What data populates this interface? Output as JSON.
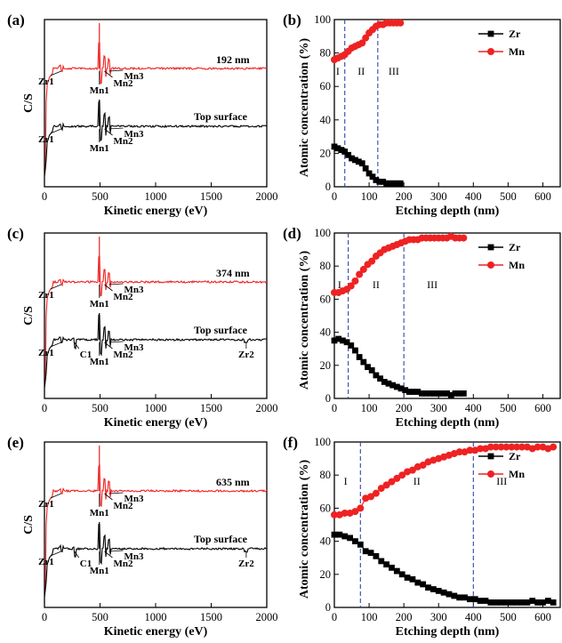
{
  "panels": [
    {
      "letter": "(a)"
    },
    {
      "letter": "(b)"
    },
    {
      "letter": "(c)"
    },
    {
      "letter": "(d)"
    },
    {
      "letter": "(e)"
    },
    {
      "letter": "(f)"
    }
  ],
  "colors": {
    "red": "#ee2222",
    "black": "#000000",
    "divider": "#3344aa"
  },
  "chart_data": [
    {
      "type": "line",
      "panel": "(a)",
      "xlabel": "Kinetic energy (eV)",
      "ylabel": "C/S",
      "xlim": [
        0,
        2000
      ],
      "xticks": [
        "0",
        "500",
        "1000",
        "1500",
        "2000"
      ],
      "series": [
        {
          "name": "192 nm",
          "color": "#ee2222"
        },
        {
          "name": "Top surface",
          "color": "#000000"
        }
      ],
      "curve_labels": [
        "192 nm",
        "Top surface"
      ],
      "peak_labels": [
        {
          "text": "Zr1",
          "series": 0
        },
        {
          "text": "Mn1",
          "series": 0
        },
        {
          "text": "Mn2",
          "series": 0
        },
        {
          "text": "Mn3",
          "series": 0
        },
        {
          "text": "Zr1",
          "series": 1
        },
        {
          "text": "Mn1",
          "series": 1
        },
        {
          "text": "Mn2",
          "series": 1
        },
        {
          "text": "Mn3",
          "series": 1
        }
      ]
    },
    {
      "type": "line",
      "panel": "(b)",
      "xlabel": "Etching depth (nm)",
      "ylabel": "Atomic concentration (%)",
      "xlim": [
        0,
        650
      ],
      "ylim": [
        0,
        100
      ],
      "xticks": [
        "0",
        "100",
        "200",
        "300",
        "400",
        "500",
        "600"
      ],
      "yticks": [
        "0",
        "20",
        "40",
        "60",
        "80",
        "100"
      ],
      "legend": "top-right",
      "regions": [
        "I",
        "II",
        "III"
      ],
      "dividers": [
        30,
        125
      ],
      "series": [
        {
          "name": "Zr",
          "color": "#000000",
          "marker": "square",
          "x": [
            0,
            10,
            20,
            30,
            40,
            50,
            60,
            70,
            80,
            90,
            100,
            110,
            120,
            130,
            140,
            150,
            160,
            170,
            180,
            190
          ],
          "y": [
            24,
            23,
            22,
            21,
            19,
            17,
            16,
            15,
            14,
            11,
            8,
            6,
            4,
            3,
            3,
            2,
            2,
            2,
            2,
            2
          ]
        },
        {
          "name": "Mn",
          "color": "#ee2222",
          "marker": "circle",
          "x": [
            0,
            10,
            20,
            30,
            40,
            50,
            60,
            70,
            80,
            90,
            100,
            110,
            120,
            130,
            140,
            150,
            160,
            170,
            180,
            190
          ],
          "y": [
            76,
            77,
            78,
            79,
            81,
            83,
            84,
            85,
            86,
            89,
            92,
            94,
            96,
            97,
            97,
            98,
            98,
            98,
            98,
            98
          ]
        }
      ]
    },
    {
      "type": "line",
      "panel": "(c)",
      "xlabel": "Kinetic energy (eV)",
      "ylabel": "C/S",
      "xlim": [
        0,
        2000
      ],
      "xticks": [
        "0",
        "500",
        "1000",
        "1500",
        "2000"
      ],
      "series": [
        {
          "name": "374 nm",
          "color": "#ee2222"
        },
        {
          "name": "Top surface",
          "color": "#000000"
        }
      ],
      "curve_labels": [
        "374 nm",
        "Top surface"
      ],
      "peak_labels": [
        {
          "text": "Zr1",
          "series": 0
        },
        {
          "text": "Mn1",
          "series": 0
        },
        {
          "text": "Mn2",
          "series": 0
        },
        {
          "text": "Mn3",
          "series": 0
        },
        {
          "text": "Zr1",
          "series": 1
        },
        {
          "text": "C1",
          "series": 1
        },
        {
          "text": "Mn1",
          "series": 1
        },
        {
          "text": "Mn2",
          "series": 1
        },
        {
          "text": "Mn3",
          "series": 1
        },
        {
          "text": "Zr2",
          "series": 1
        }
      ]
    },
    {
      "type": "line",
      "panel": "(d)",
      "xlabel": "Etching depth (nm)",
      "ylabel": "Atomic concentration (%)",
      "xlim": [
        0,
        650
      ],
      "ylim": [
        0,
        100
      ],
      "xticks": [
        "0",
        "100",
        "200",
        "300",
        "400",
        "500",
        "600"
      ],
      "yticks": [
        "0",
        "20",
        "40",
        "60",
        "80",
        "100"
      ],
      "legend": "top-right",
      "regions": [
        "I",
        "II",
        "III"
      ],
      "dividers": [
        40,
        200
      ],
      "series": [
        {
          "name": "Zr",
          "color": "#000000",
          "marker": "square",
          "x": [
            0,
            12,
            24,
            36,
            48,
            60,
            72,
            84,
            96,
            108,
            120,
            132,
            144,
            156,
            168,
            180,
            192,
            204,
            216,
            228,
            240,
            252,
            264,
            276,
            288,
            300,
            312,
            324,
            336,
            348,
            360,
            372
          ],
          "y": [
            35,
            36,
            35,
            34,
            32,
            29,
            25,
            22,
            19,
            17,
            14,
            12,
            10,
            9,
            8,
            7,
            6,
            5,
            4,
            4,
            4,
            3,
            3,
            3,
            3,
            3,
            3,
            3,
            2,
            3,
            3,
            3
          ]
        },
        {
          "name": "Mn",
          "color": "#ee2222",
          "marker": "circle",
          "x": [
            0,
            12,
            24,
            36,
            48,
            60,
            72,
            84,
            96,
            108,
            120,
            132,
            144,
            156,
            168,
            180,
            192,
            204,
            216,
            228,
            240,
            252,
            264,
            276,
            288,
            300,
            312,
            324,
            336,
            348,
            360,
            372
          ],
          "y": [
            64,
            64,
            65,
            66,
            68,
            71,
            75,
            78,
            81,
            83,
            86,
            88,
            90,
            91,
            92,
            93,
            94,
            95,
            96,
            96,
            96,
            97,
            97,
            97,
            97,
            97,
            97,
            97,
            98,
            97,
            97,
            97
          ]
        }
      ]
    },
    {
      "type": "line",
      "panel": "(e)",
      "xlabel": "Kinetic energy (eV)",
      "ylabel": "C/S",
      "xlim": [
        0,
        2000
      ],
      "xticks": [
        "0",
        "500",
        "1000",
        "1500",
        "2000"
      ],
      "series": [
        {
          "name": "635 nm",
          "color": "#ee2222"
        },
        {
          "name": "Top surface",
          "color": "#000000"
        }
      ],
      "curve_labels": [
        "635 nm",
        "Top surface"
      ],
      "peak_labels": [
        {
          "text": "Zr1",
          "series": 0
        },
        {
          "text": "Mn1",
          "series": 0
        },
        {
          "text": "Mn2",
          "series": 0
        },
        {
          "text": "Mn3",
          "series": 0
        },
        {
          "text": "Zr1",
          "series": 1
        },
        {
          "text": "C1",
          "series": 1
        },
        {
          "text": "Mn1",
          "series": 1
        },
        {
          "text": "Mn2",
          "series": 1
        },
        {
          "text": "Mn3",
          "series": 1
        },
        {
          "text": "Zr2",
          "series": 1
        }
      ]
    },
    {
      "type": "line",
      "panel": "(f)",
      "xlabel": "Etching depth (nm)",
      "ylabel": "Atomic concentration (%)",
      "xlim": [
        0,
        650
      ],
      "ylim": [
        0,
        100
      ],
      "xticks": [
        "0",
        "100",
        "200",
        "300",
        "400",
        "500",
        "600"
      ],
      "yticks": [
        "0",
        "20",
        "40",
        "60",
        "80",
        "100"
      ],
      "legend": "top-right",
      "regions": [
        "I",
        "II",
        "III"
      ],
      "dividers": [
        75,
        400
      ],
      "series": [
        {
          "name": "Zr",
          "color": "#000000",
          "marker": "square",
          "x": [
            0,
            15,
            30,
            45,
            60,
            75,
            90,
            105,
            120,
            135,
            150,
            165,
            180,
            195,
            210,
            225,
            240,
            255,
            270,
            285,
            300,
            315,
            330,
            345,
            360,
            375,
            390,
            405,
            420,
            435,
            450,
            465,
            480,
            495,
            510,
            525,
            540,
            555,
            570,
            585,
            600,
            615,
            630
          ],
          "y": [
            44,
            44,
            43,
            42,
            40,
            38,
            34,
            33,
            31,
            28,
            26,
            24,
            22,
            20,
            18,
            17,
            15,
            14,
            12,
            11,
            10,
            9,
            8,
            7,
            6,
            6,
            5,
            5,
            4,
            4,
            3,
            3,
            3,
            3,
            3,
            3,
            3,
            3,
            4,
            3,
            3,
            4,
            3
          ]
        },
        {
          "name": "Mn",
          "color": "#ee2222",
          "marker": "circle",
          "x": [
            0,
            15,
            30,
            45,
            60,
            75,
            90,
            105,
            120,
            135,
            150,
            165,
            180,
            195,
            210,
            225,
            240,
            255,
            270,
            285,
            300,
            315,
            330,
            345,
            360,
            375,
            390,
            405,
            420,
            435,
            450,
            465,
            480,
            495,
            510,
            525,
            540,
            555,
            570,
            585,
            600,
            615,
            630
          ],
          "y": [
            56,
            56,
            57,
            57,
            58,
            60,
            66,
            67,
            69,
            72,
            74,
            76,
            78,
            80,
            82,
            83,
            85,
            86,
            88,
            89,
            90,
            91,
            92,
            93,
            94,
            94,
            95,
            95,
            96,
            96,
            97,
            97,
            97,
            97,
            97,
            97,
            97,
            97,
            96,
            97,
            97,
            96,
            97
          ]
        }
      ]
    }
  ]
}
